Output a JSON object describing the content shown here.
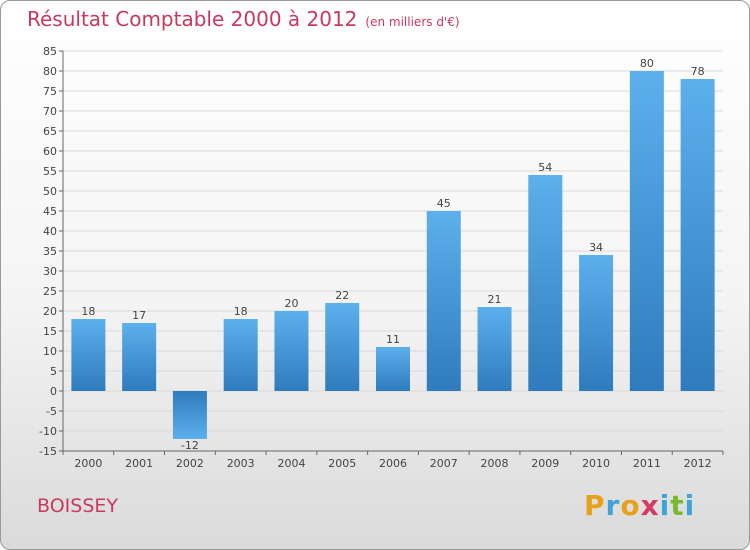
{
  "header": {
    "title": "Résultat Comptable 2000 à 2012",
    "subtitle": "(en milliers d'€)"
  },
  "footer": {
    "location": "BOISSEY",
    "logo_text": "Proxiti"
  },
  "chart_data": {
    "type": "bar",
    "title": "Résultat Comptable 2000 à 2012",
    "subtitle": "(en milliers d'€)",
    "categories": [
      "2000",
      "2001",
      "2002",
      "2003",
      "2004",
      "2005",
      "2006",
      "2007",
      "2008",
      "2009",
      "2010",
      "2011",
      "2012"
    ],
    "values": [
      18,
      17,
      -12,
      18,
      20,
      22,
      11,
      45,
      21,
      54,
      34,
      80,
      78
    ],
    "ylim": [
      -15,
      85
    ],
    "yticks": [
      -15,
      -10,
      -5,
      0,
      5,
      10,
      15,
      20,
      25,
      30,
      35,
      40,
      45,
      50,
      55,
      60,
      65,
      70,
      75,
      80,
      85
    ],
    "xlabel": "",
    "ylabel": "",
    "grid": true,
    "colors": {
      "bar": "#3f93d8",
      "bar_light": "#5aaeea",
      "bar_dark": "#2f7bbd",
      "grid": "#d9d9d9"
    }
  }
}
